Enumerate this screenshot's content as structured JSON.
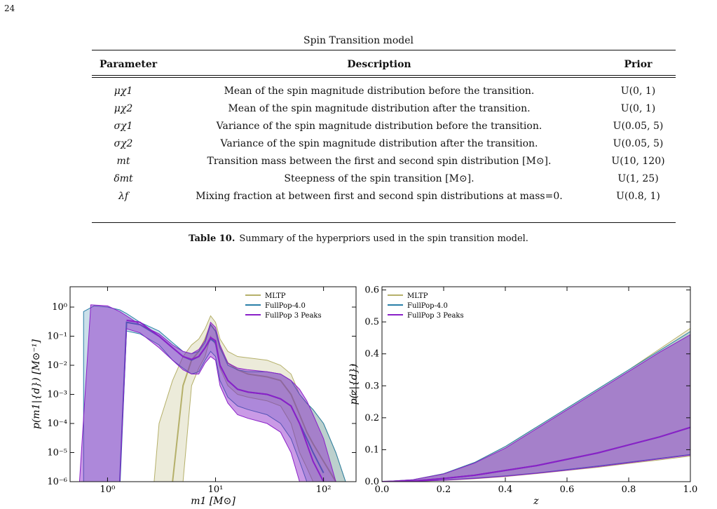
{
  "page_number": "24",
  "table": {
    "title": "Spin Transition model",
    "headers": [
      "Parameter",
      "Description",
      "Prior"
    ],
    "rows": [
      {
        "param": "μχ1",
        "description": "Mean of the spin magnitude distribution before the transition.",
        "prior": "U(0, 1)"
      },
      {
        "param": "μχ2",
        "description": "Mean of the spin magnitude distribution after the transition.",
        "prior": "U(0, 1)"
      },
      {
        "param": "σχ1",
        "description": "Variance of the spin magnitude distribution before the transition.",
        "prior": "U(0.05, 5)"
      },
      {
        "param": "σχ2",
        "description": "Variance of the spin magnitude distribution after the transition.",
        "prior": "U(0.05, 5)"
      },
      {
        "param": "mt",
        "description": "Transition mass between the first and second spin distribution [M⊙].",
        "prior": "U(10, 120)"
      },
      {
        "param": "δmt",
        "description": "Steepness of the spin transition [M⊙].",
        "prior": "U(1, 25)"
      },
      {
        "param": "λf",
        "description": "Mixing fraction at between first and second spin distributions at mass=0.",
        "prior": "U(0.8, 1)"
      }
    ],
    "caption_label": "Table 10.",
    "caption_text": "Summary of the hyperpriors used in the spin transition model."
  },
  "chart_data": [
    {
      "type": "area",
      "xlabel": "m1 [M⊙]",
      "ylabel": "p(m1|{d}) [M⊙⁻¹]",
      "xscale": "log",
      "yscale": "log",
      "xlim": [
        0.45,
        200
      ],
      "ylim": [
        1e-06,
        5
      ],
      "xticks": [
        "10⁰",
        "10¹",
        "10²"
      ],
      "yticks": [
        "10⁰",
        "10⁻¹",
        "10⁻²",
        "10⁻³",
        "10⁻⁴",
        "10⁻⁵",
        "10⁻⁶"
      ],
      "legend_position": "top-right",
      "series": [
        {
          "name": "MLTP",
          "color": "#b5b06a",
          "x": [
            2.7,
            3,
            4,
            5,
            6,
            7,
            8,
            9,
            10,
            11,
            13,
            16,
            20,
            30,
            40,
            50,
            60,
            70,
            80,
            100,
            130,
            160
          ],
          "upper": [
            1e-06,
            0.0001,
            0.003,
            0.02,
            0.05,
            0.08,
            0.18,
            0.5,
            0.3,
            0.08,
            0.03,
            0.02,
            0.018,
            0.015,
            0.01,
            0.005,
            0.001,
            0.0005,
            0.0003,
            0.0001,
            1e-05,
            1e-06
          ],
          "median": [
            null,
            null,
            1e-06,
            0.002,
            0.015,
            0.03,
            0.08,
            0.25,
            0.15,
            0.04,
            0.012,
            0.007,
            0.005,
            0.004,
            0.003,
            0.001,
            0.0002,
            5e-05,
            2e-05,
            5e-06,
            1e-06,
            null
          ],
          "lower": [
            null,
            null,
            null,
            1e-06,
            0.002,
            0.008,
            0.02,
            0.1,
            0.05,
            0.008,
            0.002,
            0.001,
            0.0008,
            0.0006,
            0.0004,
            0.0001,
            1e-05,
            3e-06,
            1e-06,
            null,
            null,
            null
          ]
        },
        {
          "name": "FullPop-4.0",
          "color": "#2a7fa8",
          "x": [
            0.6,
            0.75,
            1,
            1.3,
            1.5,
            2,
            3,
            4,
            5,
            6,
            7,
            8,
            9,
            10,
            11,
            13,
            16,
            20,
            30,
            40,
            50,
            60,
            70,
            80,
            100,
            130,
            160
          ],
          "upper": [
            0.7,
            1.1,
            1.0,
            0.8,
            0.6,
            0.3,
            0.15,
            0.06,
            0.03,
            0.025,
            0.03,
            0.06,
            0.25,
            0.15,
            0.04,
            0.01,
            0.007,
            0.006,
            0.006,
            0.005,
            0.003,
            0.001,
            0.0005,
            0.0003,
            0.0001,
            1e-05,
            1e-06
          ],
          "median": [
            null,
            null,
            null,
            1e-06,
            0.3,
            0.25,
            0.1,
            0.04,
            0.02,
            0.015,
            0.02,
            0.04,
            0.08,
            0.06,
            0.01,
            0.003,
            0.0015,
            0.0012,
            0.001,
            0.0007,
            0.0004,
            0.0001,
            3e-05,
            1e-05,
            2e-06,
            null,
            null
          ],
          "lower": [
            null,
            null,
            null,
            null,
            0.15,
            0.12,
            0.05,
            0.015,
            0.008,
            0.005,
            0.006,
            0.015,
            0.03,
            0.02,
            0.003,
            0.0008,
            0.0004,
            0.0003,
            0.0002,
            0.0001,
            3e-05,
            5e-06,
            1e-06,
            null,
            null,
            null,
            null
          ]
        },
        {
          "name": "FullPop 3 Peaks",
          "color": "#8a20c8",
          "x": [
            0.55,
            0.7,
            1,
            1.3,
            1.5,
            2,
            3,
            4,
            5,
            6,
            7,
            8,
            9,
            10,
            11,
            13,
            16,
            20,
            30,
            40,
            50,
            60,
            70,
            80,
            100,
            130
          ],
          "upper": [
            1e-06,
            1.2,
            1.1,
            0.7,
            0.5,
            0.25,
            0.12,
            0.05,
            0.03,
            0.025,
            0.035,
            0.07,
            0.3,
            0.2,
            0.05,
            0.012,
            0.008,
            0.007,
            0.006,
            0.005,
            0.003,
            0.0015,
            0.0006,
            0.0002,
            3e-05,
            1e-06
          ],
          "median": [
            null,
            null,
            null,
            null,
            0.35,
            0.3,
            0.1,
            0.04,
            0.02,
            0.016,
            0.02,
            0.04,
            0.09,
            0.07,
            0.01,
            0.003,
            0.0015,
            0.0012,
            0.001,
            0.0007,
            0.0004,
            0.0001,
            2e-05,
            5e-06,
            1e-06,
            null
          ],
          "lower": [
            null,
            null,
            null,
            null,
            0.18,
            0.13,
            0.04,
            0.015,
            0.007,
            0.005,
            0.005,
            0.012,
            0.02,
            0.015,
            0.002,
            0.0005,
            0.0002,
            0.00015,
            0.0001,
            5e-05,
            1e-05,
            1e-06,
            null,
            null,
            null,
            null
          ]
        }
      ]
    },
    {
      "type": "area",
      "xlabel": "z",
      "ylabel": "p(z|{d})",
      "xlim": [
        0.0,
        1.0
      ],
      "ylim": [
        0.0,
        0.61
      ],
      "xticks": [
        "0.0",
        "0.2",
        "0.4",
        "0.6",
        "0.8",
        "1.0"
      ],
      "yticks": [
        "0.0",
        "0.1",
        "0.2",
        "0.3",
        "0.4",
        "0.5",
        "0.6"
      ],
      "legend_position": "top-left",
      "series": [
        {
          "name": "MLTP",
          "color": "#b5b06a",
          "x": [
            0.0,
            0.1,
            0.2,
            0.3,
            0.4,
            0.5,
            0.6,
            0.7,
            0.8,
            0.9,
            1.0
          ],
          "upper": [
            0.0,
            0.006,
            0.025,
            0.06,
            0.11,
            0.17,
            0.23,
            0.29,
            0.35,
            0.415,
            0.48
          ],
          "median": [
            0.0,
            0.002,
            0.01,
            0.02,
            0.035,
            0.05,
            0.07,
            0.09,
            0.115,
            0.14,
            0.17
          ],
          "lower": [
            0.0,
            0.001,
            0.004,
            0.009,
            0.016,
            0.025,
            0.035,
            0.045,
            0.057,
            0.068,
            0.08
          ]
        },
        {
          "name": "FullPop-4.0",
          "color": "#2a7fa8",
          "x": [
            0.0,
            0.1,
            0.2,
            0.3,
            0.4,
            0.5,
            0.6,
            0.7,
            0.8,
            0.9,
            1.0
          ],
          "upper": [
            0.0,
            0.006,
            0.025,
            0.06,
            0.11,
            0.17,
            0.23,
            0.29,
            0.35,
            0.41,
            0.47
          ],
          "median": [
            0.0,
            0.002,
            0.01,
            0.02,
            0.035,
            0.05,
            0.07,
            0.09,
            0.115,
            0.14,
            0.17
          ],
          "lower": [
            0.0,
            0.0015,
            0.005,
            0.011,
            0.018,
            0.027,
            0.038,
            0.049,
            0.061,
            0.073,
            0.085
          ]
        },
        {
          "name": "FullPop 3 Peaks",
          "color": "#8a20c8",
          "x": [
            0.0,
            0.1,
            0.2,
            0.3,
            0.4,
            0.5,
            0.6,
            0.7,
            0.8,
            0.9,
            1.0
          ],
          "upper": [
            0.0,
            0.006,
            0.024,
            0.058,
            0.105,
            0.165,
            0.225,
            0.285,
            0.345,
            0.405,
            0.46
          ],
          "median": [
            0.0,
            0.002,
            0.01,
            0.02,
            0.035,
            0.05,
            0.07,
            0.09,
            0.115,
            0.14,
            0.17
          ],
          "lower": [
            0.0,
            0.0013,
            0.0045,
            0.01,
            0.017,
            0.026,
            0.036,
            0.047,
            0.059,
            0.071,
            0.083
          ]
        }
      ]
    }
  ]
}
